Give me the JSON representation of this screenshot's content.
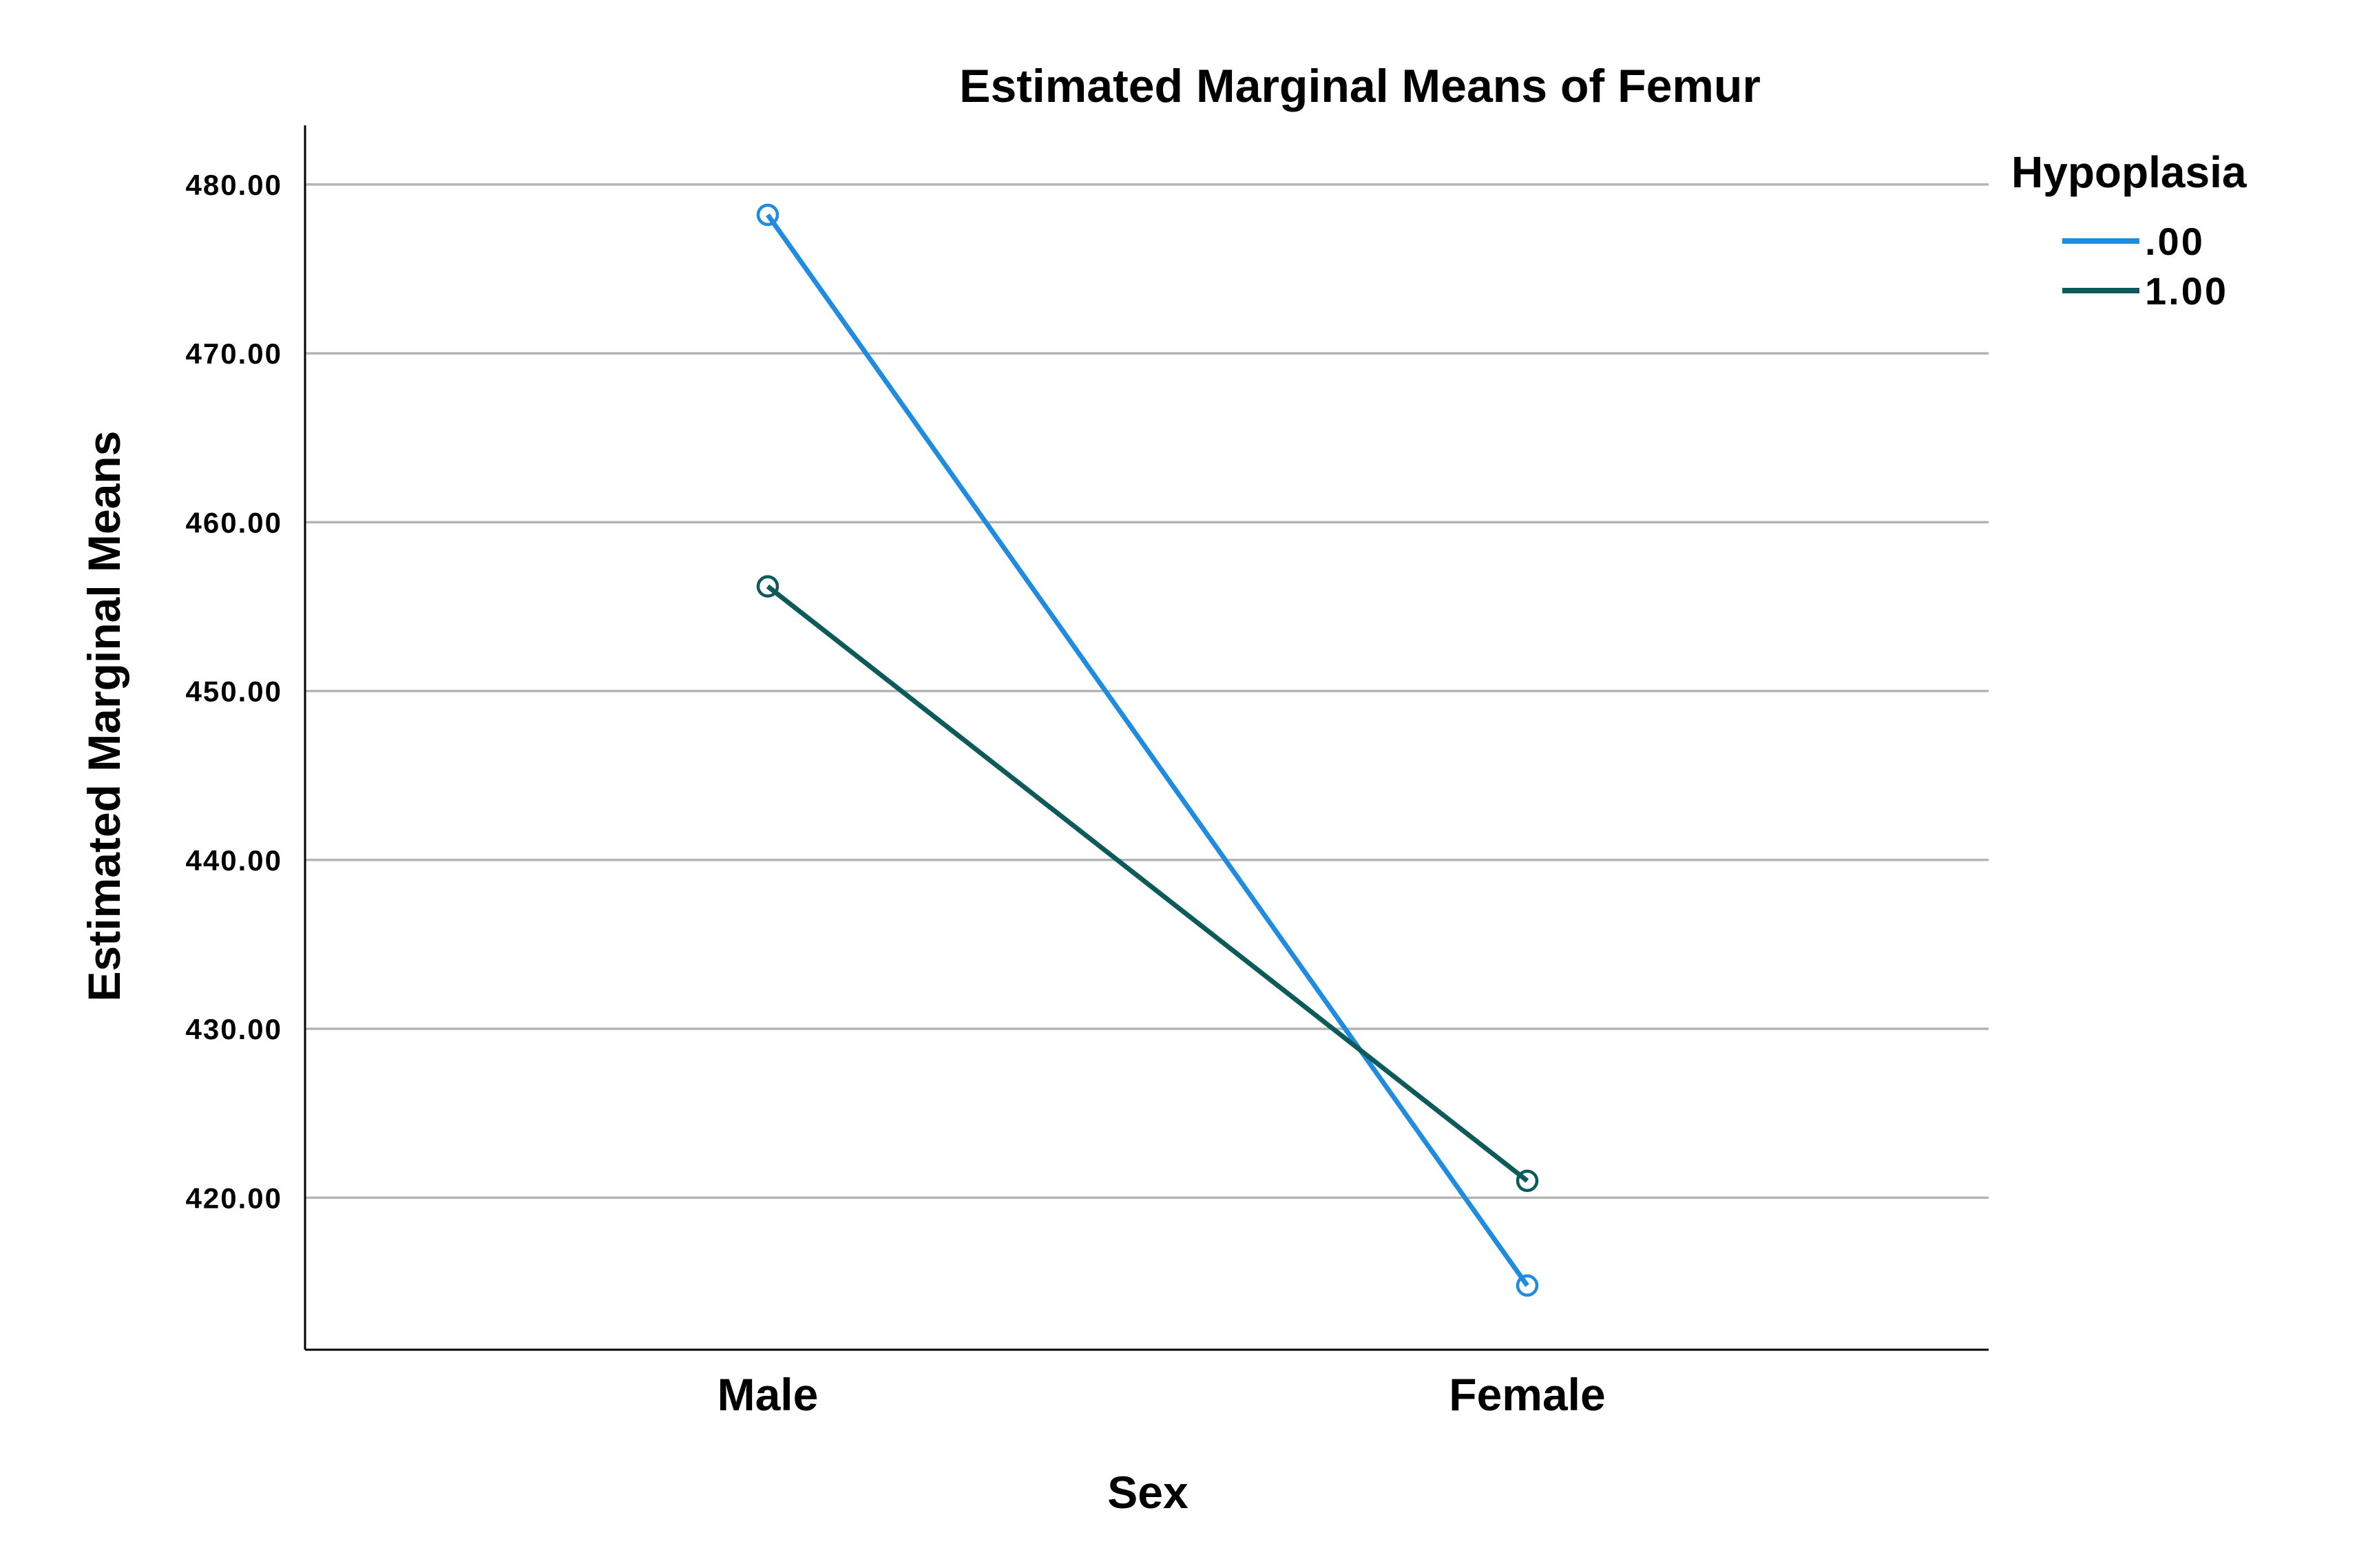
{
  "chart_data": {
    "type": "line",
    "title": "Estimated Marginal Means of Femur",
    "xlabel": "Sex",
    "ylabel": "Estimated Marginal Means",
    "categories": [
      "Male",
      "Female"
    ],
    "ylim": [
      411,
      483.5
    ],
    "yticks": [
      420,
      430,
      440,
      450,
      460,
      470,
      480
    ],
    "ytick_labels": [
      "420.00",
      "430.00",
      "440.00",
      "450.00",
      "460.00",
      "470.00",
      "480.00"
    ],
    "grid": true,
    "legend": {
      "title": "Hypoplasia",
      "position": "right"
    },
    "series": [
      {
        "name": ".00",
        "color": "#1f8ce0",
        "values": [
          478.2,
          414.8
        ]
      },
      {
        "name": "1.00",
        "color": "#0c5a5a",
        "values": [
          456.2,
          421.0
        ]
      }
    ]
  }
}
